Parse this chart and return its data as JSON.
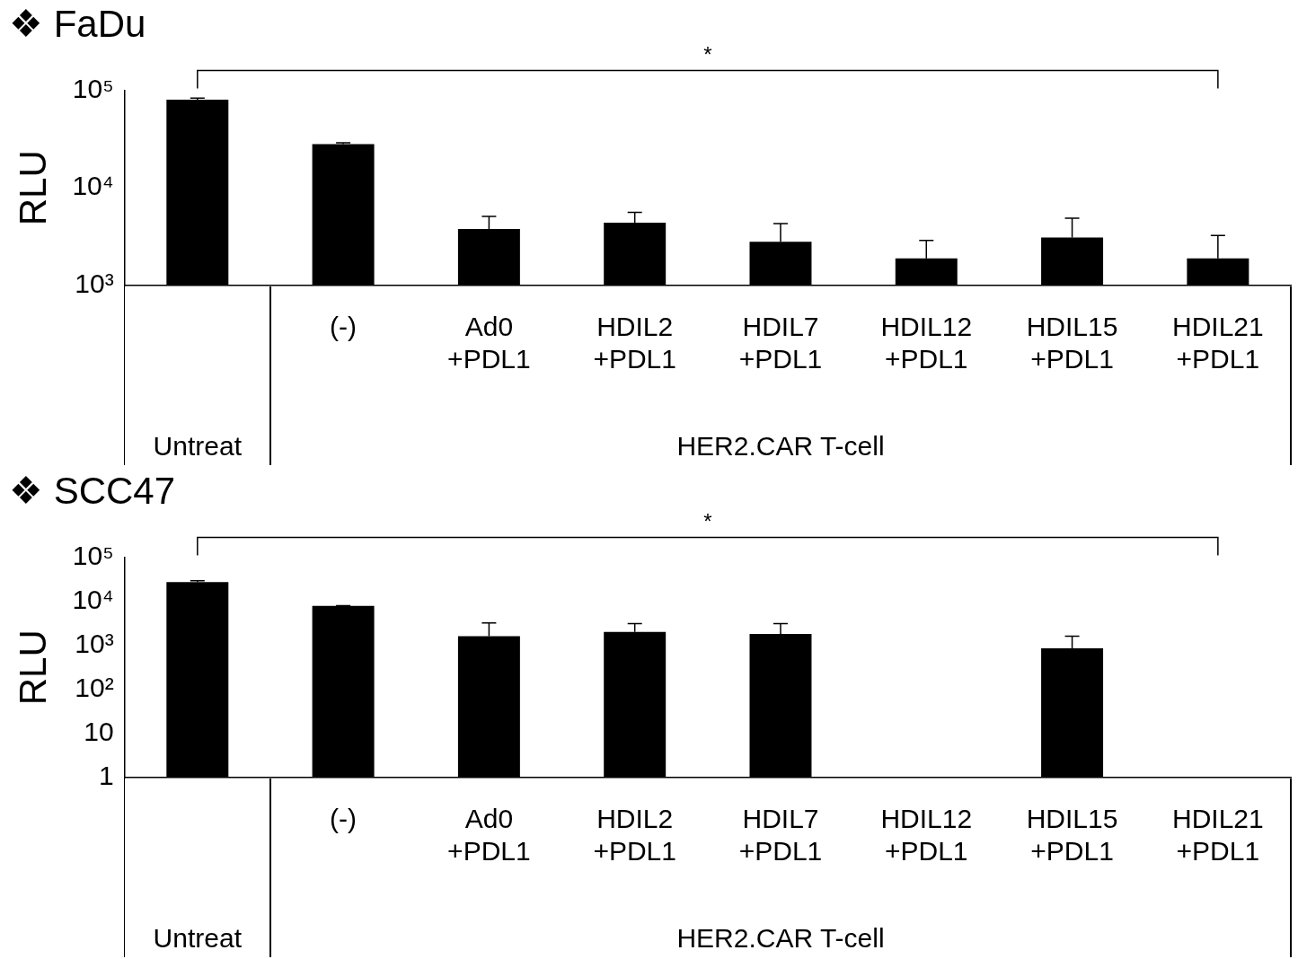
{
  "chart_data": [
    {
      "type": "bar",
      "title": "❖ FaDu",
      "ylabel": "RLU",
      "log": true,
      "grid": false,
      "legend": false,
      "categories": [
        null,
        "(-)",
        "Ad0\n+PDL1",
        "HDIL2\n+PDL1",
        "HDIL7\n+PDL1",
        "HDIL12\n+PDL1",
        "HDIL15\n+PDL1",
        "HDIL21\n+PDL1"
      ],
      "values": [
        80000,
        28000,
        3800,
        4400,
        2800,
        1900,
        3100,
        1900
      ],
      "errors": [
        [
          80000,
          83000
        ],
        [
          28000,
          29000
        ],
        [
          3800,
          5100
        ],
        [
          4400,
          5600
        ],
        [
          2800,
          4300
        ],
        [
          1900,
          2900
        ],
        [
          3100,
          4900
        ],
        [
          1900,
          3250
        ]
      ],
      "color": "#000000",
      "ylim": [
        1000,
        100000
      ],
      "yticks": [
        {
          "value": 1000,
          "label": "10³"
        },
        {
          "value": 10000,
          "label": "10⁴"
        },
        {
          "value": 100000,
          "label": "10⁵"
        }
      ],
      "annotations": [
        "*",
        "Untreat",
        "HER2.CAR T-cell"
      ]
    },
    {
      "type": "bar",
      "title": "❖ SCC47",
      "ylabel": "RLU",
      "log": true,
      "grid": false,
      "legend": false,
      "categories": [
        null,
        "(-)",
        "Ad0\n+PDL1",
        "HDIL2\n+PDL1",
        "HDIL7\n+PDL1",
        "HDIL12\n+PDL1",
        "HDIL15\n+PDL1",
        "HDIL21\n+PDL1"
      ],
      "values": [
        27000,
        7800,
        1600,
        2000,
        1800,
        1,
        850,
        null
      ],
      "errors": [
        [
          27000,
          29000
        ],
        [
          7800,
          7900
        ],
        [
          1600,
          3200
        ],
        [
          2000,
          3100
        ],
        [
          1800,
          3100
        ],
        null,
        [
          850,
          1600
        ],
        null
      ],
      "color": "#000000",
      "ylim": [
        1,
        100000
      ],
      "yticks": [
        1,
        10,
        {
          "value": 100,
          "label": "10²"
        },
        {
          "value": 1000,
          "label": "10³"
        },
        {
          "value": 10000,
          "label": "10⁴"
        },
        {
          "value": 100000,
          "label": "10⁵"
        }
      ],
      "annotations": [
        "*",
        "Untreat",
        "HER2.CAR T-cell"
      ]
    }
  ]
}
